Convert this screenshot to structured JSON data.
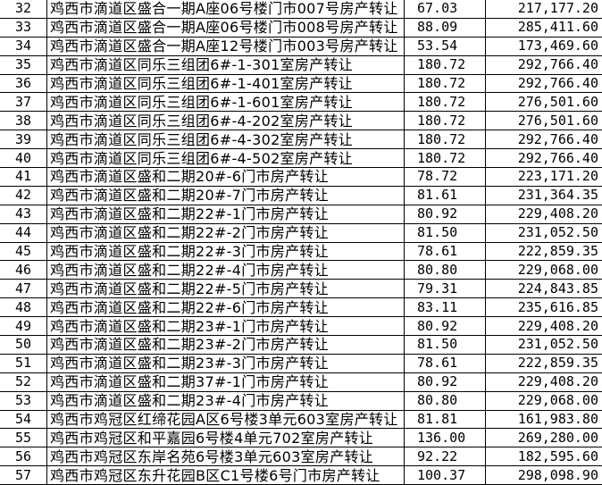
{
  "rows": [
    {
      "no": "32",
      "name": "鸡西市滴道区盛合一期A座06号楼门市007号房产转让",
      "area": "67.03",
      "price": "217,177.20"
    },
    {
      "no": "33",
      "name": "鸡西市滴道区盛合一期A座06号楼门市008号房产转让",
      "area": "88.09",
      "price": "285,411.60"
    },
    {
      "no": "34",
      "name": "鸡西市滴道区盛合一期A座12号楼门市003号房产转让",
      "area": "53.54",
      "price": "173,469.60"
    },
    {
      "no": "35",
      "name": "鸡西市滴道区同乐三组团6#-1-301室房产转让",
      "area": "180.72",
      "price": "292,766.40"
    },
    {
      "no": "36",
      "name": "鸡西市滴道区同乐三组团6#-1-401室房产转让",
      "area": "180.72",
      "price": "292,766.40"
    },
    {
      "no": "37",
      "name": "鸡西市滴道区同乐三组团6#-1-601室房产转让",
      "area": "180.72",
      "price": "276,501.60"
    },
    {
      "no": "38",
      "name": "鸡西市滴道区同乐三组团6#-4-202室房产转让",
      "area": "180.72",
      "price": "276,501.60"
    },
    {
      "no": "39",
      "name": "鸡西市滴道区同乐三组团6#-4-302室房产转让",
      "area": "180.72",
      "price": "292,766.40"
    },
    {
      "no": "40",
      "name": "鸡西市滴道区同乐三组团6#-4-502室房产转让",
      "area": "180.72",
      "price": "292,766.40"
    },
    {
      "no": "41",
      "name": "鸡西市滴道区盛和二期20#-6门市房产转让",
      "area": "78.72",
      "price": "223,171.20"
    },
    {
      "no": "42",
      "name": "鸡西市滴道区盛和二期20#-7门市房产转让",
      "area": "81.61",
      "price": "231,364.35"
    },
    {
      "no": "43",
      "name": "鸡西市滴道区盛和二期22#-1门市房产转让",
      "area": "80.92",
      "price": "229,408.20"
    },
    {
      "no": "44",
      "name": "鸡西市滴道区盛和二期22#-2门市房产转让",
      "area": "81.50",
      "price": "231,052.50"
    },
    {
      "no": "45",
      "name": "鸡西市滴道区盛和二期22#-3门市房产转让",
      "area": "78.61",
      "price": "222,859.35"
    },
    {
      "no": "46",
      "name": "鸡西市滴道区盛和二期22#-4门市房产转让",
      "area": "80.80",
      "price": "229,068.00"
    },
    {
      "no": "47",
      "name": "鸡西市滴道区盛和二期22#-5门市房产转让",
      "area": "79.31",
      "price": "224,843.85"
    },
    {
      "no": "48",
      "name": "鸡西市滴道区盛和二期22#-6门市房产转让",
      "area": "83.11",
      "price": "235,616.85"
    },
    {
      "no": "49",
      "name": "鸡西市滴道区盛和二期23#-1门市房产转让",
      "area": "80.92",
      "price": "229,408.20"
    },
    {
      "no": "50",
      "name": "鸡西市滴道区盛和二期23#-2门市房产转让",
      "area": "81.50",
      "price": "231,052.50"
    },
    {
      "no": "51",
      "name": "鸡西市滴道区盛和二期23#-3门市房产转让",
      "area": "78.61",
      "price": "222,859.35"
    },
    {
      "no": "52",
      "name": "鸡西市滴道区盛和二期37#-1门市房产转让",
      "area": "80.92",
      "price": "229,408.20"
    },
    {
      "no": "53",
      "name": "鸡西市滴道区盛和二期23#-4门市房产转让",
      "area": "80.80",
      "price": "229,068.00"
    },
    {
      "no": "54",
      "name": "鸡西市鸡冠区红缔花园A区6号楼3单元603室房产转让",
      "area": "81.81",
      "price": "161,983.80"
    },
    {
      "no": "55",
      "name": "鸡西市鸡冠区和平嘉园6号楼4单元702室房产转让",
      "area": "136.00",
      "price": "269,280.00"
    },
    {
      "no": "56",
      "name": "鸡西市鸡冠区东岸名苑6号楼3单元603室房产转让",
      "area": "92.22",
      "price": "182,595.60"
    },
    {
      "no": "57",
      "name": "鸡西市鸡冠区东升花园B区C1号楼6号门市房产转让",
      "area": "100.37",
      "price": "298,098.90"
    }
  ]
}
